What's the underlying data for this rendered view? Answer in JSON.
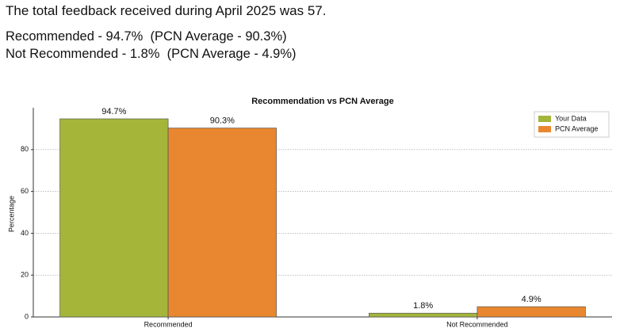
{
  "intro": {
    "summary": "The total feedback received during April 2025 was 57.",
    "recommended": "Recommended - 94.7%  (PCN Average - 90.3%)",
    "not_recommended": "Not Recommended - 1.8%  (PCN Average - 4.9%)"
  },
  "chart_data": {
    "type": "bar",
    "title": "Recommendation vs PCN Average",
    "ylabel": "Percentage",
    "categories": [
      "Recommended",
      "Not Recommended"
    ],
    "series": [
      {
        "name": "Your Data",
        "color": "#a4b53a",
        "values": [
          94.7,
          1.8
        ],
        "value_labels": [
          "94.7%",
          "1.8%"
        ]
      },
      {
        "name": "PCN Average",
        "color": "#e8872f",
        "values": [
          90.3,
          4.9
        ],
        "value_labels": [
          "90.3%",
          "4.9%"
        ]
      }
    ],
    "ylim": [
      0,
      100
    ],
    "yticks": [
      0,
      20,
      40,
      60,
      80
    ],
    "grid": true,
    "legend": "upper right"
  }
}
